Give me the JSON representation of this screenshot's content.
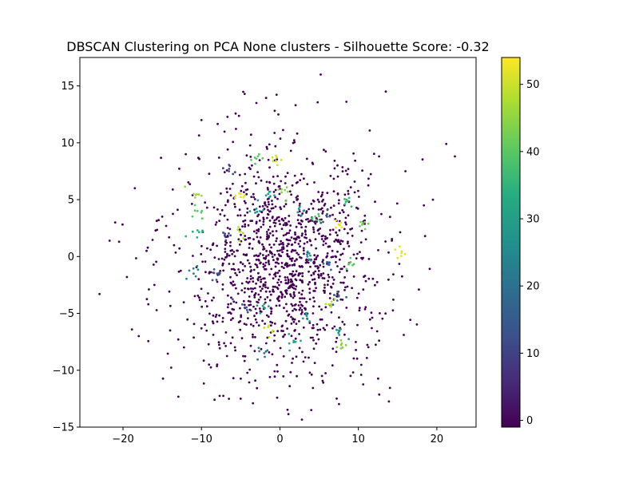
{
  "chart_data": {
    "type": "scatter",
    "title": "DBSCAN Clustering on PCA None clusters - Silhouette Score: -0.32",
    "xlabel": "",
    "ylabel": "",
    "xlim": [
      -25.5,
      25
    ],
    "ylim": [
      -15,
      17.5
    ],
    "x_ticks": [
      -20,
      -10,
      0,
      10,
      20
    ],
    "y_ticks": [
      -15,
      -10,
      -5,
      0,
      5,
      10,
      15
    ],
    "x_tick_labels": [
      "−20",
      "−10",
      "0",
      "10",
      "20"
    ],
    "y_tick_labels": [
      "−15",
      "−10",
      "−5",
      "0",
      "5",
      "10",
      "15"
    ],
    "grid": false,
    "colormap": "viridis",
    "colorbar": {
      "range": [
        -1,
        54
      ],
      "ticks": [
        0,
        10,
        20,
        30,
        40,
        50
      ],
      "tick_labels": [
        "0",
        "10",
        "20",
        "30",
        "40",
        "50"
      ]
    },
    "noise_label": -1,
    "total_points": 1500,
    "points_sample": [
      {
        "x": -23,
        "y": -3.3,
        "label": -1
      },
      {
        "x": -21,
        "y": 3.0,
        "label": -1
      },
      {
        "x": -20.5,
        "y": 1.3,
        "label": -1
      },
      {
        "x": -19.5,
        "y": -1.8,
        "label": -1
      },
      {
        "x": -18.5,
        "y": 6.0,
        "label": -1
      },
      {
        "x": -18,
        "y": -7.0,
        "label": -1
      },
      {
        "x": -17,
        "y": 0.5,
        "label": -1
      },
      {
        "x": -16,
        "y": -2.5,
        "label": -1
      },
      {
        "x": -15,
        "y": 3.5,
        "label": -1
      },
      {
        "x": -14,
        "y": -6.5,
        "label": -1
      },
      {
        "x": -13.5,
        "y": 1.0,
        "label": -1
      },
      {
        "x": -12,
        "y": 9.0,
        "label": -1
      },
      {
        "x": -10,
        "y": 12.0,
        "label": -1
      },
      {
        "x": -8,
        "y": -9.5,
        "label": -1
      },
      {
        "x": -5,
        "y": -12.5,
        "label": -1
      },
      {
        "x": -4.5,
        "y": 14.3,
        "label": -1
      },
      {
        "x": -3,
        "y": 13.5,
        "label": -1
      },
      {
        "x": 0.5,
        "y": -1.0,
        "label": -1
      },
      {
        "x": 2,
        "y": 13.3,
        "label": -1
      },
      {
        "x": 4,
        "y": -13.5,
        "label": -1
      },
      {
        "x": 5.2,
        "y": 16.0,
        "label": -1
      },
      {
        "x": 9,
        "y": -10.5,
        "label": -1
      },
      {
        "x": 13.5,
        "y": 14.5,
        "label": -1
      },
      {
        "x": 16,
        "y": 7.5,
        "label": -1
      },
      {
        "x": 18.5,
        "y": 1.8,
        "label": -1
      },
      {
        "x": 19.5,
        "y": 5.0,
        "label": -1
      },
      {
        "x": 21.2,
        "y": 9.9,
        "label": -1
      },
      {
        "x": 22.3,
        "y": 8.8,
        "label": -1
      },
      {
        "x": -11,
        "y": 5.5,
        "label": 46
      },
      {
        "x": -10.5,
        "y": 4.0,
        "label": 40
      },
      {
        "x": -10.5,
        "y": 2.3,
        "label": 34
      },
      {
        "x": -11,
        "y": -1.5,
        "label": 24
      },
      {
        "x": -6.5,
        "y": 7.5,
        "label": 10
      },
      {
        "x": -5,
        "y": 5.5,
        "label": 52
      },
      {
        "x": -5,
        "y": 2.2,
        "label": 48
      },
      {
        "x": -3,
        "y": 8.6,
        "label": 40
      },
      {
        "x": -3,
        "y": 4.2,
        "label": 27
      },
      {
        "x": -1.5,
        "y": 5.5,
        "label": 30
      },
      {
        "x": -0.5,
        "y": 8.4,
        "label": 50
      },
      {
        "x": 1,
        "y": 5.7,
        "label": 44
      },
      {
        "x": 3,
        "y": 4.0,
        "label": 27
      },
      {
        "x": 4.5,
        "y": 3.5,
        "label": 38
      },
      {
        "x": 3.5,
        "y": 0.0,
        "label": 26
      },
      {
        "x": 6,
        "y": -0.5,
        "label": 18
      },
      {
        "x": 7.5,
        "y": 2.8,
        "label": 52
      },
      {
        "x": 8.5,
        "y": 5.0,
        "label": 36
      },
      {
        "x": 9,
        "y": -0.5,
        "label": 40
      },
      {
        "x": 10.5,
        "y": 2.8,
        "label": 42
      },
      {
        "x": 15.5,
        "y": 0.3,
        "label": 52
      },
      {
        "x": -2,
        "y": -4.5,
        "label": 28
      },
      {
        "x": -1.5,
        "y": -6.2,
        "label": 50
      },
      {
        "x": 2,
        "y": -7.5,
        "label": 32
      },
      {
        "x": 3.5,
        "y": -5.5,
        "label": 28
      },
      {
        "x": 6.5,
        "y": -4.2,
        "label": 48
      },
      {
        "x": 7.5,
        "y": -3.5,
        "label": 16
      },
      {
        "x": 7.5,
        "y": -6.5,
        "label": 28
      },
      {
        "x": 8,
        "y": -8,
        "label": 44
      },
      {
        "x": -2,
        "y": -8.5,
        "label": 22
      },
      {
        "x": -4.5,
        "y": -4.5,
        "label": 12
      },
      {
        "x": -8,
        "y": -1.5,
        "label": 14
      },
      {
        "x": -7,
        "y": 2.0,
        "label": 11
      },
      {
        "x": 6.0,
        "y": 3.5,
        "label": 12
      }
    ]
  }
}
